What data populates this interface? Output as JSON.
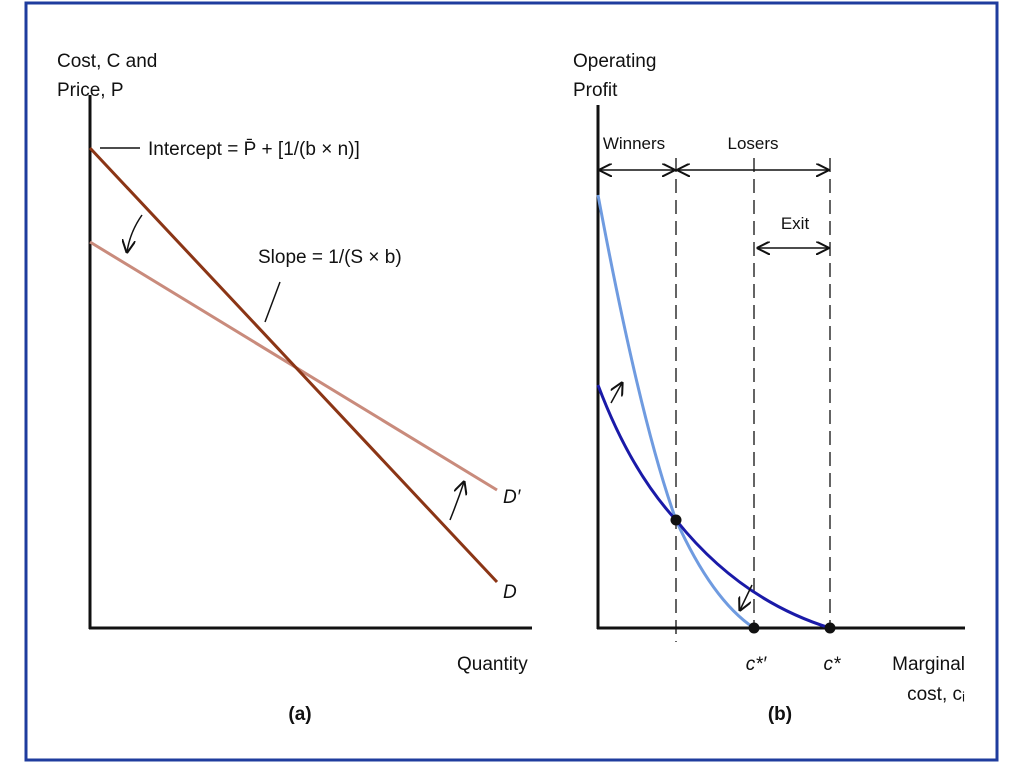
{
  "panel_a": {
    "y_axis_label": [
      "Cost, C and",
      "Price, P"
    ],
    "intercept_label": "Intercept = P̄ + [1/(b × n)]",
    "slope_label": "Slope = 1/(S × b)",
    "curve_labels": [
      "D′",
      "D"
    ],
    "x_axis_label": "Quantity",
    "caption": "(a)"
  },
  "panel_b": {
    "y_axis_label": [
      "Operating",
      "Profit"
    ],
    "region_labels": [
      "Winners",
      "Losers",
      "Exit"
    ],
    "cutoff_labels": [
      "c*′",
      "c*"
    ],
    "x_axis_label": [
      "Marginal",
      "cost, cᵢ"
    ],
    "caption": "(b)"
  }
}
